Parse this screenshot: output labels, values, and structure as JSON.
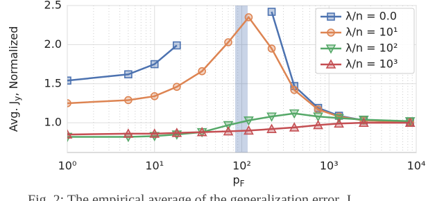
{
  "chart_data": {
    "type": "line",
    "ylabel": {
      "main": "Avg. J",
      "sub": "y",
      "rest": ", Normalized"
    },
    "xlabel": {
      "main": "p",
      "sub": "F"
    },
    "caption": "Fig. 2: The empirical average of the generalization error, J",
    "x": [
      1,
      5,
      10,
      18,
      35,
      70,
      120,
      220,
      400,
      750,
      1300,
      2500,
      8500
    ],
    "log_x": true,
    "series": [
      {
        "name": "λ/n = 0.0",
        "color": "#4c72b0",
        "marker": "square",
        "values": [
          1.54,
          1.62,
          1.75,
          1.99,
          null,
          null,
          null,
          2.42,
          1.47,
          1.19,
          1.09,
          1.03,
          1.01
        ]
      },
      {
        "name": "λ/n = 10¹",
        "color": "#dd8452",
        "marker": "circle",
        "values": [
          1.25,
          1.29,
          1.34,
          1.46,
          1.66,
          2.03,
          2.35,
          1.95,
          1.42,
          1.17,
          1.08,
          1.03,
          1.01
        ]
      },
      {
        "name": "λ/n = 10²",
        "color": "#55a868",
        "marker": "triangle-down",
        "values": [
          0.82,
          0.82,
          0.83,
          0.85,
          0.88,
          0.97,
          1.03,
          1.08,
          1.12,
          1.08,
          1.06,
          1.04,
          1.02
        ]
      },
      {
        "name": "λ/n = 10³",
        "color": "#c44e52",
        "marker": "triangle-up",
        "values": [
          0.85,
          0.86,
          0.86,
          0.87,
          0.88,
          0.89,
          0.9,
          0.92,
          0.94,
          0.97,
          0.99,
          1.0,
          1.0
        ]
      }
    ],
    "xlim": [
      1,
      10000
    ],
    "xticks": [
      {
        "value": 1,
        "label": "10⁰"
      },
      {
        "value": 10,
        "label": "10¹"
      },
      {
        "value": 100,
        "label": "10²"
      },
      {
        "value": 1000,
        "label": "10³"
      },
      {
        "value": 10000,
        "label": "10⁴"
      }
    ],
    "ylim": [
      0.62,
      2.5
    ],
    "yticks": [
      {
        "value": 1,
        "label": "1.0"
      },
      {
        "value": 1.5,
        "label": "1.5"
      },
      {
        "value": 2,
        "label": "2.0"
      },
      {
        "value": 2.5,
        "label": "2.5"
      }
    ],
    "grid": true,
    "legend": "upper right"
  }
}
